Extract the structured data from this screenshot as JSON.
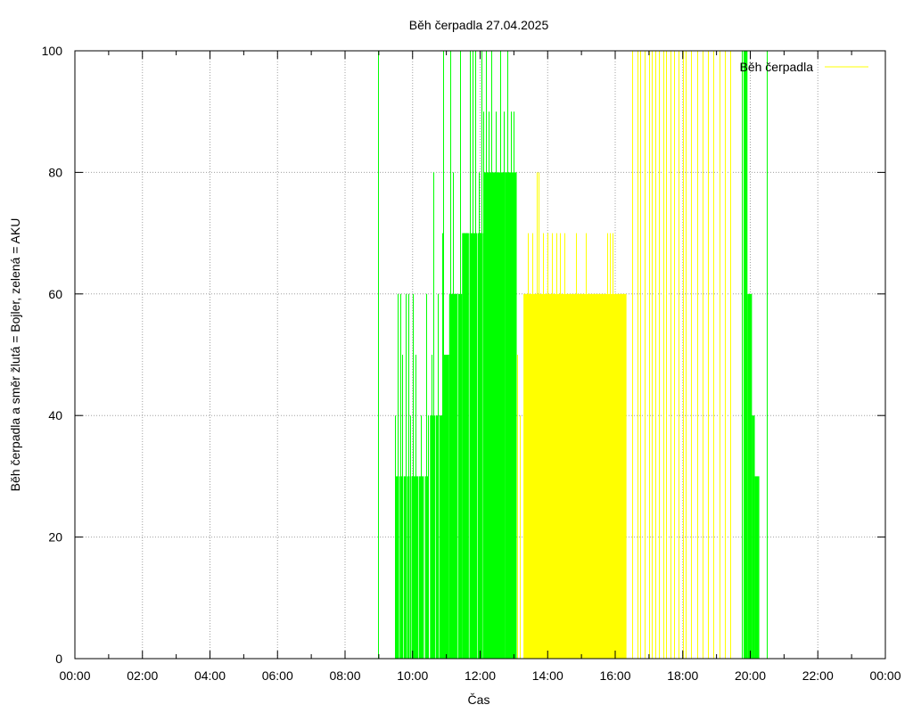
{
  "chart_data": {
    "type": "area",
    "title": "Běh čerpadla 27.04.2025",
    "xlabel": "Čas",
    "ylabel": "Běh čerpadla a směr žlutá = Bojler, zelená = AKU",
    "xlim": [
      "00:00",
      "24:00"
    ],
    "ylim": [
      0,
      100
    ],
    "x_ticks": [
      "00:00",
      "02:00",
      "04:00",
      "06:00",
      "08:00",
      "10:00",
      "12:00",
      "14:00",
      "16:00",
      "18:00",
      "20:00",
      "22:00",
      "00:00"
    ],
    "y_ticks": [
      "0",
      "20",
      "40",
      "60",
      "80",
      "100"
    ],
    "grid": true,
    "legend": {
      "position": "top-right",
      "entries": [
        {
          "name": "Běh čerpadla",
          "color": "#ffff00"
        }
      ]
    },
    "colors": {
      "boiler": "#ffff00",
      "aku": "#00ff00",
      "grid": "#a0a0a0"
    },
    "series": [
      {
        "name": "Běh čerpadla",
        "direction": "Bojler",
        "color": "#ffff00",
        "blocks": [
          {
            "start": "13:17",
            "end": "16:20",
            "value": 60
          }
        ],
        "pulses": [
          {
            "time": "13:05",
            "value": 50
          },
          {
            "time": "13:10",
            "value": 40
          },
          {
            "time": "13:25",
            "value": 70
          },
          {
            "time": "13:32",
            "value": 70
          },
          {
            "time": "13:40",
            "value": 80
          },
          {
            "time": "13:44",
            "value": 80
          },
          {
            "time": "13:52",
            "value": 70
          },
          {
            "time": "14:00",
            "value": 70
          },
          {
            "time": "14:08",
            "value": 70
          },
          {
            "time": "14:15",
            "value": 70
          },
          {
            "time": "14:22",
            "value": 70
          },
          {
            "time": "14:30",
            "value": 70
          },
          {
            "time": "14:50",
            "value": 70
          },
          {
            "time": "15:08",
            "value": 70
          },
          {
            "time": "15:45",
            "value": 70
          },
          {
            "time": "15:50",
            "value": 70
          },
          {
            "time": "15:55",
            "value": 70
          },
          {
            "time": "16:30",
            "value": 100
          },
          {
            "time": "16:40",
            "value": 100
          },
          {
            "time": "16:45",
            "value": 100
          },
          {
            "time": "16:52",
            "value": 100
          },
          {
            "time": "17:00",
            "value": 100
          },
          {
            "time": "17:05",
            "value": 100
          },
          {
            "time": "17:12",
            "value": 100
          },
          {
            "time": "17:18",
            "value": 100
          },
          {
            "time": "17:25",
            "value": 100
          },
          {
            "time": "17:30",
            "value": 100
          },
          {
            "time": "17:38",
            "value": 100
          },
          {
            "time": "17:45",
            "value": 100
          },
          {
            "time": "17:52",
            "value": 100
          },
          {
            "time": "18:00",
            "value": 100
          },
          {
            "time": "18:05",
            "value": 100
          },
          {
            "time": "18:15",
            "value": 100
          },
          {
            "time": "18:25",
            "value": 100
          },
          {
            "time": "18:35",
            "value": 100
          },
          {
            "time": "18:45",
            "value": 100
          },
          {
            "time": "18:55",
            "value": 100
          },
          {
            "time": "19:05",
            "value": 100
          },
          {
            "time": "19:15",
            "value": 100
          },
          {
            "time": "19:25",
            "value": 100
          }
        ]
      },
      {
        "name": "",
        "direction": "AKU",
        "color": "#00ff00",
        "blocks": [
          {
            "start": "09:30",
            "end": "09:36",
            "value": 30
          },
          {
            "start": "09:37",
            "end": "09:42",
            "value": 30
          },
          {
            "start": "09:44",
            "end": "09:49",
            "value": 30
          },
          {
            "start": "09:50",
            "end": "09:55",
            "value": 30
          },
          {
            "start": "09:58",
            "end": "10:10",
            "value": 30
          },
          {
            "start": "10:11",
            "end": "10:20",
            "value": 30
          },
          {
            "start": "10:22",
            "end": "10:28",
            "value": 30
          },
          {
            "start": "10:31",
            "end": "10:40",
            "value": 40
          },
          {
            "start": "10:41",
            "end": "10:47",
            "value": 40
          },
          {
            "start": "10:48",
            "end": "10:54",
            "value": 40
          },
          {
            "start": "10:55",
            "end": "11:05",
            "value": 50
          },
          {
            "start": "11:05",
            "end": "11:20",
            "value": 60
          },
          {
            "start": "11:21",
            "end": "11:28",
            "value": 60
          },
          {
            "start": "11:28",
            "end": "11:40",
            "value": 70
          },
          {
            "start": "11:41",
            "end": "11:55",
            "value": 70
          },
          {
            "start": "11:56",
            "end": "12:05",
            "value": 70
          },
          {
            "start": "12:06",
            "end": "12:20",
            "value": 80
          },
          {
            "start": "12:20",
            "end": "12:45",
            "value": 80
          },
          {
            "start": "12:45",
            "end": "13:05",
            "value": 80
          },
          {
            "start": "19:48",
            "end": "19:55",
            "value": 100
          },
          {
            "start": "19:55",
            "end": "20:03",
            "value": 60
          },
          {
            "start": "20:03",
            "end": "20:08",
            "value": 40
          },
          {
            "start": "20:08",
            "end": "20:16",
            "value": 30
          }
        ],
        "pulses": [
          {
            "time": "08:58",
            "value": 100
          },
          {
            "time": "09:28",
            "value": 40
          },
          {
            "time": "09:33",
            "value": 60
          },
          {
            "time": "09:38",
            "value": 60
          },
          {
            "time": "09:42",
            "value": 50
          },
          {
            "time": "09:47",
            "value": 60
          },
          {
            "time": "09:52",
            "value": 60
          },
          {
            "time": "09:56",
            "value": 40
          },
          {
            "time": "10:00",
            "value": 60
          },
          {
            "time": "10:05",
            "value": 50
          },
          {
            "time": "10:14",
            "value": 40
          },
          {
            "time": "10:24",
            "value": 60
          },
          {
            "time": "10:28",
            "value": 40
          },
          {
            "time": "10:33",
            "value": 50
          },
          {
            "time": "10:37",
            "value": 80
          },
          {
            "time": "10:45",
            "value": 60
          },
          {
            "time": "10:52",
            "value": 70
          },
          {
            "time": "10:55",
            "value": 100
          },
          {
            "time": "11:00",
            "value": 50
          },
          {
            "time": "11:07",
            "value": 100
          },
          {
            "time": "11:12",
            "value": 80
          },
          {
            "time": "11:18",
            "value": 60
          },
          {
            "time": "11:25",
            "value": 100
          },
          {
            "time": "11:30",
            "value": 70
          },
          {
            "time": "11:35",
            "value": 70
          },
          {
            "time": "11:42",
            "value": 100
          },
          {
            "time": "11:47",
            "value": 100
          },
          {
            "time": "11:52",
            "value": 100
          },
          {
            "time": "11:57",
            "value": 80
          },
          {
            "time": "12:02",
            "value": 100
          },
          {
            "time": "12:06",
            "value": 90
          },
          {
            "time": "12:10",
            "value": 100
          },
          {
            "time": "12:15",
            "value": 90
          },
          {
            "time": "12:20",
            "value": 100
          },
          {
            "time": "12:28",
            "value": 90
          },
          {
            "time": "12:35",
            "value": 100
          },
          {
            "time": "12:42",
            "value": 90
          },
          {
            "time": "12:48",
            "value": 100
          },
          {
            "time": "12:55",
            "value": 90
          },
          {
            "time": "13:00",
            "value": 90
          },
          {
            "time": "19:45",
            "value": 100
          },
          {
            "time": "20:30",
            "value": 100
          }
        ]
      }
    ]
  }
}
